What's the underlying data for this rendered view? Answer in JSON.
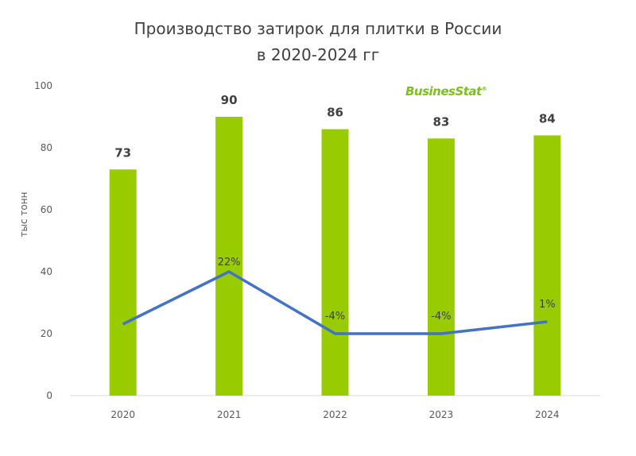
{
  "chart_data": {
    "type": "bar",
    "title_line1": "Производство затирок для плитки в России",
    "title_line2": "в 2020-2024 гг",
    "ylabel": "тыс тонн",
    "ylim": [
      0,
      100
    ],
    "yticks": [
      0,
      20,
      40,
      60,
      80,
      100
    ],
    "categories": [
      "2020",
      "2021",
      "2022",
      "2023",
      "2024"
    ],
    "bars": {
      "values": [
        73,
        90,
        86,
        83,
        84
      ],
      "color": "#99cc00"
    },
    "growth_line": {
      "values": [
        0,
        22,
        -4,
        -4,
        1
      ],
      "labels": [
        "",
        "22%",
        "-4%",
        "-4%",
        "1%"
      ],
      "secondary_axis_hidden": true,
      "ylim": [
        -30,
        100
      ],
      "color": "#4472c4"
    },
    "grid": false,
    "legend": "none",
    "logo": "BusinesStat"
  }
}
